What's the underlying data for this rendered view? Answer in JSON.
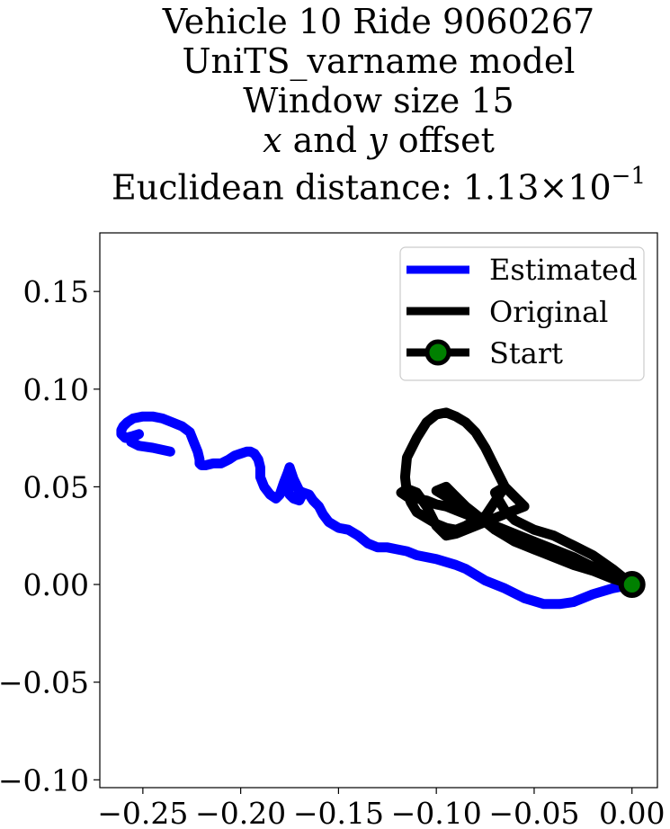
{
  "title": {
    "line1": "Vehicle 10 Ride 9060267",
    "line2": "UniTS_varname model",
    "line3": "Window size 15",
    "line4_x": "x",
    "line4_and": " and ",
    "line4_y": "y",
    "line4_rest": " offset",
    "line5_prefix": "Euclidean distance: ",
    "line5_mantissa": "1.13",
    "line5_times": "×",
    "line5_base": "10",
    "line5_exp": "−1"
  },
  "chart_data": {
    "type": "line",
    "title": "Vehicle 10 Ride 9060267 UniTS_varname model Window size 15 x and y offset Euclidean distance: 1.13×10^-1",
    "xlabel": "",
    "ylabel": "",
    "xlim": [
      -0.272,
      0.013
    ],
    "ylim": [
      -0.104,
      0.18
    ],
    "x_ticks": [
      -0.25,
      -0.2,
      -0.15,
      -0.1,
      -0.05,
      0.0
    ],
    "x_tick_labels": [
      "−0.25",
      "−0.20",
      "−0.15",
      "−0.10",
      "−0.05",
      "0.00"
    ],
    "y_ticks": [
      0.15,
      0.1,
      0.05,
      0.0,
      -0.05,
      -0.1
    ],
    "y_tick_labels": [
      "0.15",
      "0.10",
      "0.05",
      "0.00",
      "−0.05",
      "−0.10"
    ],
    "grid": false,
    "legend_position": "top-right",
    "series": [
      {
        "name": "Estimated",
        "color": "#0000ff",
        "x": [
          0.0,
          -0.01,
          -0.02,
          -0.03,
          -0.037,
          -0.045,
          -0.055,
          -0.065,
          -0.075,
          -0.08,
          -0.085,
          -0.09,
          -0.1,
          -0.11,
          -0.115,
          -0.12,
          -0.125,
          -0.13,
          -0.135,
          -0.14,
          -0.145,
          -0.15,
          -0.155,
          -0.158,
          -0.16,
          -0.163,
          -0.165,
          -0.168,
          -0.17,
          -0.171,
          -0.172,
          -0.173,
          -0.174,
          -0.175,
          -0.176,
          -0.175,
          -0.173,
          -0.17,
          -0.169,
          -0.17,
          -0.171,
          -0.173,
          -0.174,
          -0.175,
          -0.176,
          -0.178,
          -0.18,
          -0.182,
          -0.185,
          -0.188,
          -0.19,
          -0.19,
          -0.191,
          -0.193,
          -0.195,
          -0.197,
          -0.2,
          -0.203,
          -0.206,
          -0.21,
          -0.214,
          -0.218,
          -0.22,
          -0.221,
          -0.221,
          -0.222,
          -0.224,
          -0.226,
          -0.23,
          -0.235,
          -0.24,
          -0.245,
          -0.25,
          -0.255,
          -0.258,
          -0.26,
          -0.261,
          -0.261,
          -0.259,
          -0.255,
          -0.252,
          -0.254,
          -0.256,
          -0.252,
          -0.245,
          -0.236
        ],
        "y": [
          0.0,
          -0.002,
          -0.005,
          -0.009,
          -0.01,
          -0.01,
          -0.007,
          -0.002,
          0.002,
          0.005,
          0.008,
          0.01,
          0.013,
          0.015,
          0.017,
          0.018,
          0.019,
          0.019,
          0.021,
          0.025,
          0.028,
          0.029,
          0.032,
          0.036,
          0.04,
          0.043,
          0.046,
          0.047,
          0.048,
          0.05,
          0.05,
          0.051,
          0.051,
          0.05,
          0.048,
          0.046,
          0.044,
          0.043,
          0.045,
          0.047,
          0.05,
          0.054,
          0.057,
          0.06,
          0.057,
          0.052,
          0.046,
          0.044,
          0.046,
          0.05,
          0.055,
          0.06,
          0.064,
          0.067,
          0.068,
          0.068,
          0.067,
          0.066,
          0.064,
          0.062,
          0.062,
          0.061,
          0.061,
          0.062,
          0.064,
          0.068,
          0.073,
          0.078,
          0.081,
          0.083,
          0.085,
          0.086,
          0.086,
          0.085,
          0.083,
          0.081,
          0.079,
          0.077,
          0.075,
          0.076,
          0.077,
          0.076,
          0.073,
          0.071,
          0.07,
          0.068
        ]
      },
      {
        "name": "Original",
        "color": "#000000",
        "x": [
          0.0,
          -0.01,
          -0.02,
          -0.03,
          -0.04,
          -0.05,
          -0.06,
          -0.065,
          -0.068,
          -0.07,
          -0.065,
          -0.075,
          -0.08,
          -0.085,
          -0.09,
          -0.095,
          -0.1,
          -0.105,
          -0.11,
          -0.113,
          -0.115,
          -0.116,
          -0.115,
          -0.11,
          -0.105,
          -0.1,
          -0.095,
          -0.09,
          -0.085,
          -0.08,
          -0.075,
          -0.07,
          -0.065,
          -0.06,
          -0.055,
          -0.06,
          -0.065,
          -0.07,
          -0.075,
          -0.08,
          -0.085,
          -0.09,
          -0.095,
          -0.1,
          -0.105,
          -0.11,
          -0.115,
          -0.118,
          -0.115,
          -0.11,
          -0.105,
          -0.1,
          -0.095,
          -0.09,
          -0.085,
          -0.08,
          -0.07,
          -0.06,
          -0.05,
          -0.04,
          -0.03,
          -0.02,
          -0.01,
          0.0,
          -0.01,
          -0.02,
          -0.03,
          -0.04,
          -0.05,
          -0.06,
          -0.065,
          -0.07,
          -0.075,
          -0.08,
          -0.085,
          -0.09,
          -0.095,
          -0.1,
          -0.095,
          -0.09,
          -0.085,
          -0.08,
          -0.075,
          -0.07,
          -0.065,
          -0.06,
          -0.055,
          -0.05,
          -0.045,
          -0.04,
          -0.03,
          -0.02,
          -0.01,
          0.0
        ],
        "y": [
          0.0,
          0.008,
          0.015,
          0.02,
          0.025,
          0.028,
          0.033,
          0.038,
          0.043,
          0.047,
          0.05,
          0.035,
          0.033,
          0.03,
          0.028,
          0.029,
          0.031,
          0.034,
          0.037,
          0.042,
          0.047,
          0.055,
          0.065,
          0.075,
          0.083,
          0.087,
          0.088,
          0.086,
          0.083,
          0.078,
          0.07,
          0.06,
          0.05,
          0.045,
          0.04,
          0.038,
          0.036,
          0.034,
          0.032,
          0.03,
          0.028,
          0.026,
          0.025,
          0.03,
          0.04,
          0.047,
          0.049,
          0.047,
          0.045,
          0.044,
          0.043,
          0.041,
          0.04,
          0.038,
          0.036,
          0.034,
          0.03,
          0.026,
          0.022,
          0.017,
          0.012,
          0.007,
          0.003,
          0.0,
          0.004,
          0.009,
          0.014,
          0.018,
          0.022,
          0.024,
          0.026,
          0.028,
          0.032,
          0.036,
          0.04,
          0.045,
          0.05,
          0.048,
          0.045,
          0.042,
          0.038,
          0.035,
          0.032,
          0.028,
          0.025,
          0.022,
          0.02,
          0.018,
          0.016,
          0.014,
          0.01,
          0.007,
          0.003,
          0.0
        ]
      }
    ],
    "start": {
      "name": "Start",
      "x": 0.0,
      "y": 0.0,
      "marker_face_color": "#008000",
      "marker_edge_color": "#000000"
    }
  },
  "colors": {
    "estimated": "#0000ff",
    "original": "#000000",
    "start_face": "#008000",
    "axes": "#000000",
    "background": "#ffffff"
  }
}
